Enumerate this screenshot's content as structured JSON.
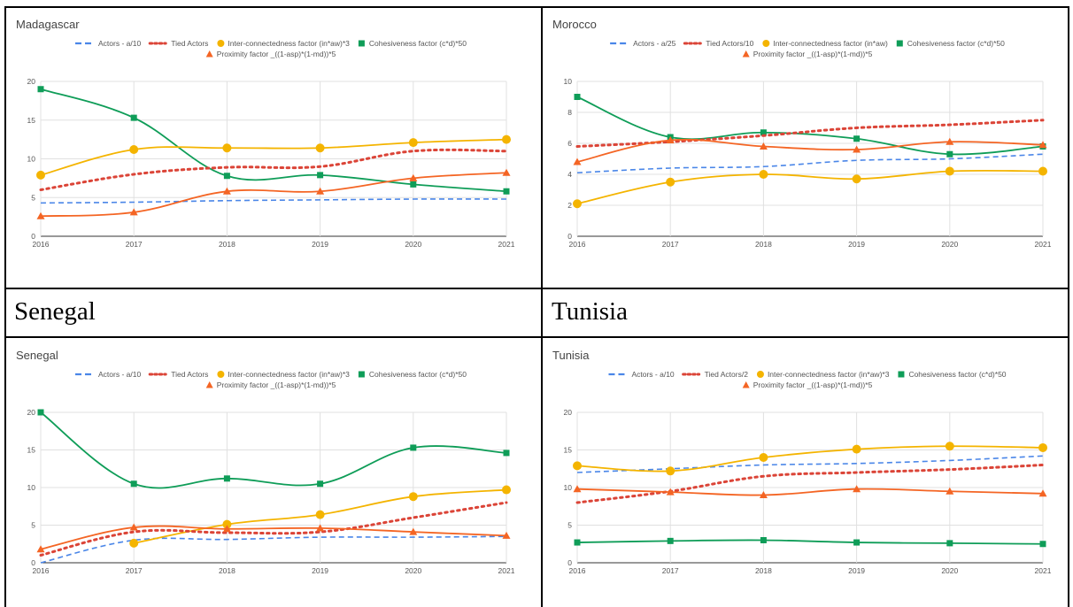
{
  "headings": {
    "senegal": "Senegal",
    "tunisia": "Tunisia"
  },
  "colors": {
    "actors": "#4a86e8",
    "tied": "#db4437",
    "inter": "#f4b400",
    "cohesion": "#0f9d58",
    "proximity": "#f46524"
  },
  "chart_data": [
    {
      "type": "line",
      "title": "Madagascar",
      "x": [
        "2016",
        "2017",
        "2018",
        "2019",
        "2020",
        "2021"
      ],
      "ylim": [
        0,
        20
      ],
      "yticks": [
        "0",
        "5",
        "10",
        "15",
        "20"
      ],
      "legend_position": "top",
      "legend_row1": [
        "Actors - a/10",
        "Tied Actors",
        "Inter-connectedness factor (in*aw)*3",
        "Cohesiveness factor (c*d)*50"
      ],
      "legend_row2": [
        "Proximity factor _((1-asp)*(1-md))*5"
      ],
      "series": [
        {
          "name": "Actors - a/10",
          "style": "dashed",
          "values": [
            4.3,
            4.4,
            4.6,
            4.7,
            4.8,
            4.8
          ]
        },
        {
          "name": "Tied Actors",
          "style": "dotted",
          "values": [
            6.0,
            8.0,
            8.9,
            9.0,
            11.0,
            11.0
          ]
        },
        {
          "name": "Inter-connectedness factor (in*aw)*3",
          "style": "circle",
          "values": [
            7.9,
            11.2,
            11.4,
            11.4,
            12.1,
            12.5
          ]
        },
        {
          "name": "Cohesiveness factor (c*d)*50",
          "style": "square",
          "values": [
            19.0,
            15.3,
            7.8,
            7.9,
            6.7,
            5.8
          ]
        },
        {
          "name": "Proximity factor _((1-asp)*(1-md))*5",
          "style": "triangle",
          "values": [
            2.6,
            3.1,
            5.8,
            5.8,
            7.5,
            8.2
          ]
        }
      ]
    },
    {
      "type": "line",
      "title": "Morocco",
      "x": [
        "2016",
        "2017",
        "2018",
        "2019",
        "2020",
        "2021"
      ],
      "ylim": [
        0,
        10
      ],
      "yticks": [
        "0",
        "2",
        "4",
        "6",
        "8",
        "10"
      ],
      "legend_position": "top",
      "legend_row1": [
        "Actors - a/25",
        "Tied Actors/10",
        "Inter-connectedness factor (in*aw)",
        "Cohesiveness factor (c*d)*50"
      ],
      "legend_row2": [
        "Proximity factor _((1-asp)*(1-md))*5"
      ],
      "series": [
        {
          "name": "Actors - a/25",
          "style": "dashed",
          "values": [
            4.1,
            4.4,
            4.5,
            4.9,
            5.0,
            5.3
          ]
        },
        {
          "name": "Tied Actors/10",
          "style": "dotted",
          "values": [
            5.8,
            6.1,
            6.5,
            7.0,
            7.2,
            7.5
          ]
        },
        {
          "name": "Inter-connectedness factor (in*aw)",
          "style": "circle",
          "values": [
            2.1,
            3.5,
            4.0,
            3.7,
            4.2,
            4.2
          ]
        },
        {
          "name": "Cohesiveness factor (c*d)*50",
          "style": "square",
          "values": [
            9.0,
            6.4,
            6.7,
            6.3,
            5.3,
            5.8
          ]
        },
        {
          "name": "Proximity factor _((1-asp)*(1-md))*5",
          "style": "triangle",
          "values": [
            4.8,
            6.2,
            5.8,
            5.6,
            6.1,
            5.9
          ]
        }
      ]
    },
    {
      "type": "line",
      "title": "Senegal",
      "x": [
        "2016",
        "2017",
        "2018",
        "2019",
        "2020",
        "2021"
      ],
      "ylim": [
        0,
        20
      ],
      "yticks": [
        "0",
        "5",
        "10",
        "15",
        "20"
      ],
      "legend_position": "top",
      "legend_row1": [
        "Actors - a/10",
        "Tied Actors",
        "Inter-connectedness factor (in*aw)*3",
        "Cohesiveness factor (c*d)*50"
      ],
      "legend_row2": [
        "Proximity factor _((1-asp)*(1-md))*5"
      ],
      "series": [
        {
          "name": "Actors - a/10",
          "style": "dashed",
          "values": [
            0.0,
            3.0,
            3.1,
            3.4,
            3.4,
            3.5
          ]
        },
        {
          "name": "Tied Actors",
          "style": "dotted",
          "values": [
            1.0,
            4.1,
            4.0,
            4.1,
            6.0,
            8.0
          ]
        },
        {
          "name": "Inter-connectedness factor (in*aw)*3",
          "style": "circle",
          "values": [
            null,
            2.6,
            5.1,
            6.4,
            8.8,
            9.7
          ]
        },
        {
          "name": "Cohesiveness factor (c*d)*50",
          "style": "square",
          "values": [
            20.0,
            10.5,
            11.2,
            10.5,
            15.3,
            14.6
          ]
        },
        {
          "name": "Proximity factor _((1-asp)*(1-md))*5",
          "style": "triangle",
          "values": [
            1.8,
            4.7,
            4.5,
            4.6,
            4.1,
            3.6
          ]
        }
      ]
    },
    {
      "type": "line",
      "title": "Tunisia",
      "x": [
        "2016",
        "2017",
        "2018",
        "2019",
        "2020",
        "2021"
      ],
      "ylim": [
        0,
        20
      ],
      "yticks": [
        "0",
        "5",
        "10",
        "15",
        "20"
      ],
      "legend_position": "top",
      "legend_row1": [
        "Actors - a/10",
        "Tied Actors/2",
        "Inter-connectedness factor (in*aw)*3",
        "Cohesiveness factor (c*d)*50"
      ],
      "legend_row2": [
        "Proximity factor _((1-asp)*(1-md))*5"
      ],
      "series": [
        {
          "name": "Actors - a/10",
          "style": "dashed",
          "values": [
            12.0,
            12.5,
            13.0,
            13.2,
            13.6,
            14.2
          ]
        },
        {
          "name": "Tied Actors/2",
          "style": "dotted",
          "values": [
            8.0,
            9.5,
            11.5,
            12.0,
            12.4,
            13.0
          ]
        },
        {
          "name": "Inter-connectedness factor (in*aw)*3",
          "style": "circle",
          "values": [
            12.9,
            12.2,
            14.0,
            15.1,
            15.5,
            15.3
          ]
        },
        {
          "name": "Cohesiveness factor (c*d)*50",
          "style": "square",
          "values": [
            2.7,
            2.9,
            3.0,
            2.7,
            2.6,
            2.5
          ]
        },
        {
          "name": "Proximity factor _((1-asp)*(1-md))*5",
          "style": "triangle",
          "values": [
            9.8,
            9.4,
            9.0,
            9.8,
            9.5,
            9.2
          ]
        }
      ]
    }
  ]
}
